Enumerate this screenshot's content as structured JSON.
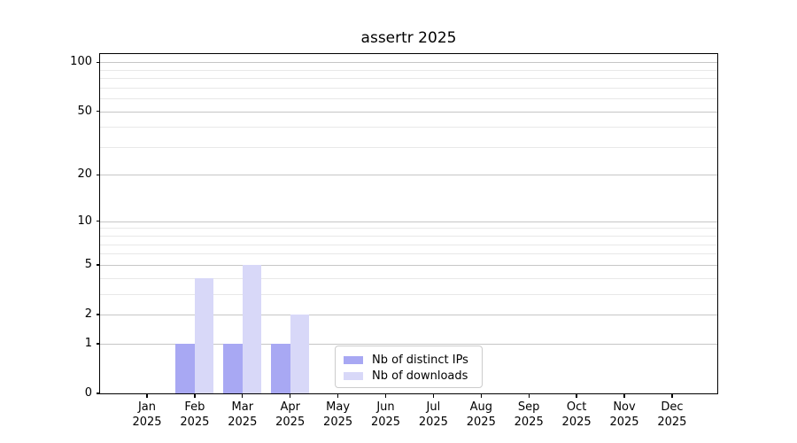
{
  "chart_data": {
    "type": "bar",
    "title": "assertr 2025",
    "categories": [
      "Jan",
      "Feb",
      "Mar",
      "Apr",
      "May",
      "Jun",
      "Jul",
      "Aug",
      "Sep",
      "Oct",
      "Nov",
      "Dec"
    ],
    "x_tick_year": "2025",
    "series": [
      {
        "name": "Nb of distinct IPs",
        "color": "#a8a8f3",
        "values": [
          0,
          1,
          1,
          1,
          0,
          0,
          0,
          0,
          0,
          0,
          0,
          0
        ]
      },
      {
        "name": "Nb of downloads",
        "color": "#d8d8f8",
        "values": [
          0,
          4,
          5,
          2,
          0,
          0,
          0,
          0,
          0,
          0,
          0,
          0
        ]
      }
    ],
    "y_scale": "log1p",
    "y_axis_ticks": [
      0,
      1,
      2,
      5,
      10,
      20,
      50,
      100
    ],
    "y_minor_gridlines": [
      3,
      4,
      6,
      7,
      8,
      9,
      30,
      40,
      60,
      70,
      80,
      90
    ],
    "ylim": [
      0,
      113
    ],
    "xlabel": "",
    "ylabel": "",
    "grid": "horizontal-only",
    "legend": {
      "position": "inside-bottom-center",
      "entries": [
        "Nb of distinct IPs",
        "Nb of downloads"
      ]
    },
    "colors": {
      "major_grid": "#c6c6c6",
      "minor_grid": "#e8e8e8",
      "axis": "#000000",
      "legend_border": "#cccccc",
      "background": "#ffffff"
    }
  }
}
